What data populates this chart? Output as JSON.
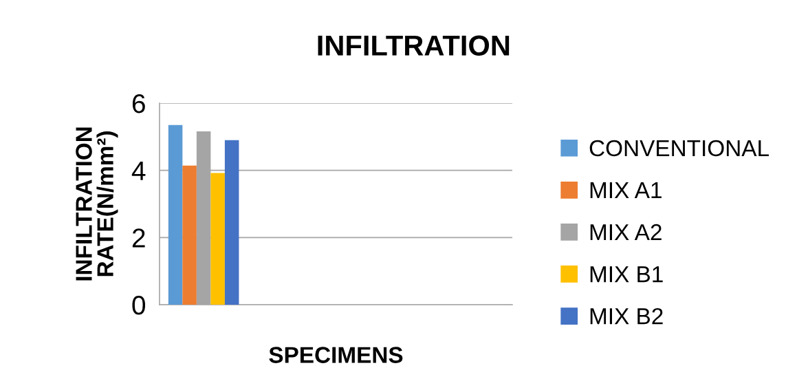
{
  "chart_data": {
    "type": "bar",
    "title": "INFILTRATION",
    "xlabel": "SPECIMENS",
    "ylabel": "INFILTRATION\nRATE(N/mm²)",
    "categories": [
      null,
      null,
      null,
      null
    ],
    "series": [
      {
        "name": "CONVENTIONAL",
        "color": "#5b9bd5",
        "values": [
          5.35,
          null,
          null,
          null
        ]
      },
      {
        "name": "MIX A1",
        "color": "#ed7d31",
        "values": [
          4.14,
          null,
          null,
          null
        ]
      },
      {
        "name": "MIX A2",
        "color": "#a5a5a5",
        "values": [
          5.16,
          null,
          null,
          null
        ]
      },
      {
        "name": "MIX B1",
        "color": "#ffc000",
        "values": [
          3.92,
          null,
          null,
          null
        ]
      },
      {
        "name": "MIX B2",
        "color": "#4472c4",
        "values": [
          4.9,
          null,
          null,
          null
        ]
      }
    ],
    "ylim": [
      0,
      6
    ],
    "yticks": [
      0,
      2,
      4,
      6
    ],
    "grid": "y",
    "legend": "right"
  }
}
